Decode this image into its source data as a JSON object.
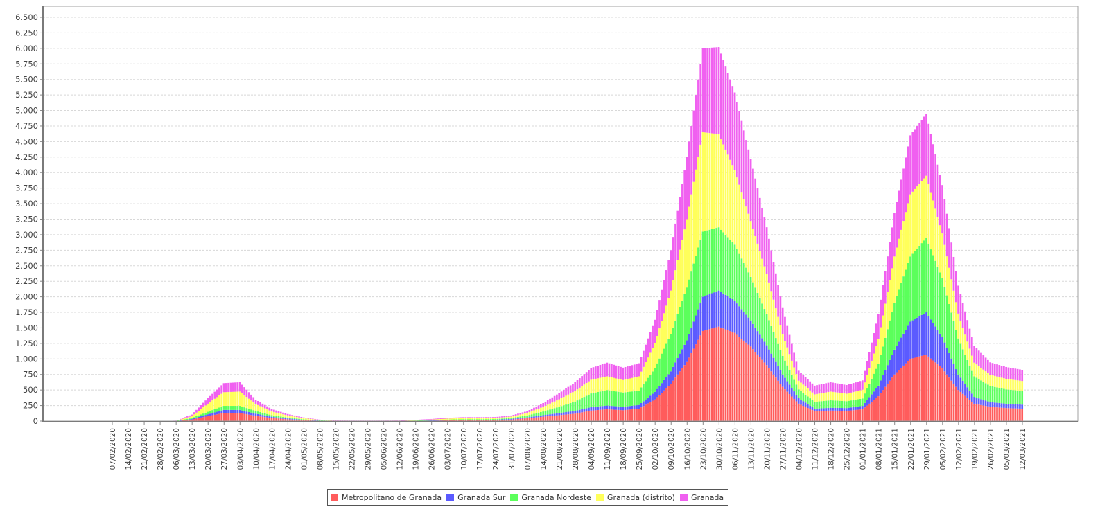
{
  "chart_data": {
    "type": "area",
    "stacked": true,
    "title": "",
    "xlabel": "",
    "ylabel": "",
    "ylim": [
      0,
      6500
    ],
    "grid": true,
    "legend_position": "bottom",
    "y_ticks": [
      0,
      250,
      500,
      750,
      1000,
      1250,
      1500,
      1750,
      2000,
      2250,
      2500,
      2750,
      3000,
      3250,
      3500,
      3750,
      4000,
      4250,
      4500,
      4750,
      5000,
      5250,
      5500,
      5750,
      6000,
      6250,
      6500
    ],
    "y_tick_labels": [
      "0",
      "250",
      "500",
      "750",
      "1.000",
      "1.250",
      "1.500",
      "1.750",
      "2.000",
      "2.250",
      "2.500",
      "2.750",
      "3.000",
      "3.250",
      "3.500",
      "3.750",
      "4.000",
      "4.250",
      "4.500",
      "4.750",
      "5.000",
      "5.250",
      "5.500",
      "5.750",
      "6.000",
      "6.250",
      "6.500"
    ],
    "categories": [
      "07/02/2020",
      "14/02/2020",
      "21/02/2020",
      "28/02/2020",
      "06/03/2020",
      "13/03/2020",
      "20/03/2020",
      "27/03/2020",
      "03/04/2020",
      "10/04/2020",
      "17/04/2020",
      "24/04/2020",
      "01/05/2020",
      "08/05/2020",
      "15/05/2020",
      "22/05/2020",
      "29/05/2020",
      "05/06/2020",
      "12/06/2020",
      "19/06/2020",
      "26/06/2020",
      "03/07/2020",
      "10/07/2020",
      "17/07/2020",
      "24/07/2020",
      "31/07/2020",
      "07/08/2020",
      "14/08/2020",
      "21/08/2020",
      "28/08/2020",
      "04/09/2020",
      "11/09/2020",
      "18/09/2020",
      "25/09/2020",
      "02/10/2020",
      "09/10/2020",
      "16/10/2020",
      "23/10/2020",
      "30/10/2020",
      "06/11/2020",
      "13/11/2020",
      "20/11/2020",
      "27/11/2020",
      "04/12/2020",
      "11/12/2020",
      "18/12/2020",
      "25/12/2020",
      "01/01/2021",
      "08/01/2021",
      "15/01/2021",
      "22/01/2021",
      "29/01/2021",
      "05/02/2021",
      "12/02/2021",
      "19/02/2021",
      "26/02/2021",
      "05/03/2021",
      "12/03/2021"
    ],
    "series": [
      {
        "name": "Metropolitano de Granada",
        "color": "#ff5c5c",
        "values": [
          0,
          0,
          0,
          0,
          2,
          25,
          80,
          130,
          130,
          85,
          50,
          30,
          15,
          6,
          3,
          2,
          2,
          2,
          2,
          4,
          8,
          12,
          15,
          15,
          16,
          25,
          45,
          70,
          95,
          120,
          170,
          190,
          175,
          200,
          350,
          600,
          950,
          1450,
          1520,
          1420,
          1200,
          900,
          550,
          280,
          160,
          170,
          165,
          190,
          400,
          750,
          1000,
          1070,
          850,
          500,
          280,
          230,
          210,
          200
        ]
      },
      {
        "name": "Granada Sur",
        "color": "#5b5bff",
        "values": [
          0,
          0,
          0,
          0,
          1,
          10,
          30,
          50,
          50,
          35,
          20,
          12,
          6,
          3,
          1,
          1,
          1,
          1,
          1,
          2,
          3,
          5,
          6,
          6,
          7,
          10,
          15,
          25,
          35,
          45,
          55,
          60,
          55,
          60,
          120,
          200,
          350,
          550,
          580,
          520,
          420,
          320,
          200,
          90,
          40,
          45,
          45,
          55,
          170,
          400,
          600,
          680,
          500,
          250,
          110,
          75,
          70,
          65
        ]
      },
      {
        "name": "Granada Nordeste",
        "color": "#5bff5b",
        "values": [
          0,
          0,
          0,
          0,
          1,
          15,
          40,
          65,
          65,
          45,
          25,
          15,
          8,
          3,
          1,
          1,
          1,
          1,
          1,
          3,
          5,
          8,
          10,
          10,
          10,
          15,
          30,
          60,
          100,
          150,
          220,
          250,
          230,
          230,
          380,
          600,
          850,
          1050,
          1020,
          900,
          700,
          500,
          300,
          140,
          110,
          120,
          110,
          120,
          350,
          750,
          1050,
          1200,
          950,
          580,
          330,
          260,
          230,
          220
        ]
      },
      {
        "name": "Granada (distrito)",
        "color": "#ffff5b",
        "values": [
          0,
          0,
          0,
          0,
          2,
          30,
          130,
          220,
          230,
          110,
          60,
          35,
          18,
          7,
          3,
          2,
          2,
          2,
          3,
          6,
          10,
          15,
          18,
          18,
          18,
          22,
          40,
          75,
          120,
          170,
          220,
          220,
          200,
          230,
          400,
          700,
          1100,
          1600,
          1500,
          1200,
          900,
          650,
          350,
          140,
          120,
          140,
          120,
          140,
          400,
          750,
          1000,
          1000,
          720,
          400,
          220,
          180,
          170,
          160
        ]
      },
      {
        "name": "Granada",
        "color": "#f060f0",
        "values": [
          0,
          0,
          0,
          0,
          2,
          25,
          90,
          145,
          150,
          70,
          40,
          22,
          12,
          5,
          2,
          2,
          2,
          2,
          2,
          5,
          8,
          12,
          14,
          14,
          14,
          18,
          30,
          60,
          100,
          140,
          190,
          220,
          200,
          210,
          380,
          650,
          1000,
          1350,
          1400,
          1250,
          1000,
          750,
          420,
          160,
          140,
          150,
          140,
          150,
          400,
          700,
          950,
          1000,
          780,
          450,
          270,
          200,
          190,
          180
        ]
      }
    ]
  },
  "legend": {
    "items": [
      {
        "label": "Metropolitano de Granada",
        "color": "#ff5c5c"
      },
      {
        "label": "Granada Sur",
        "color": "#5b5bff"
      },
      {
        "label": "Granada Nordeste",
        "color": "#5bff5b"
      },
      {
        "label": "Granada (distrito)",
        "color": "#ffff5b"
      },
      {
        "label": "Granada",
        "color": "#f060f0"
      }
    ]
  }
}
